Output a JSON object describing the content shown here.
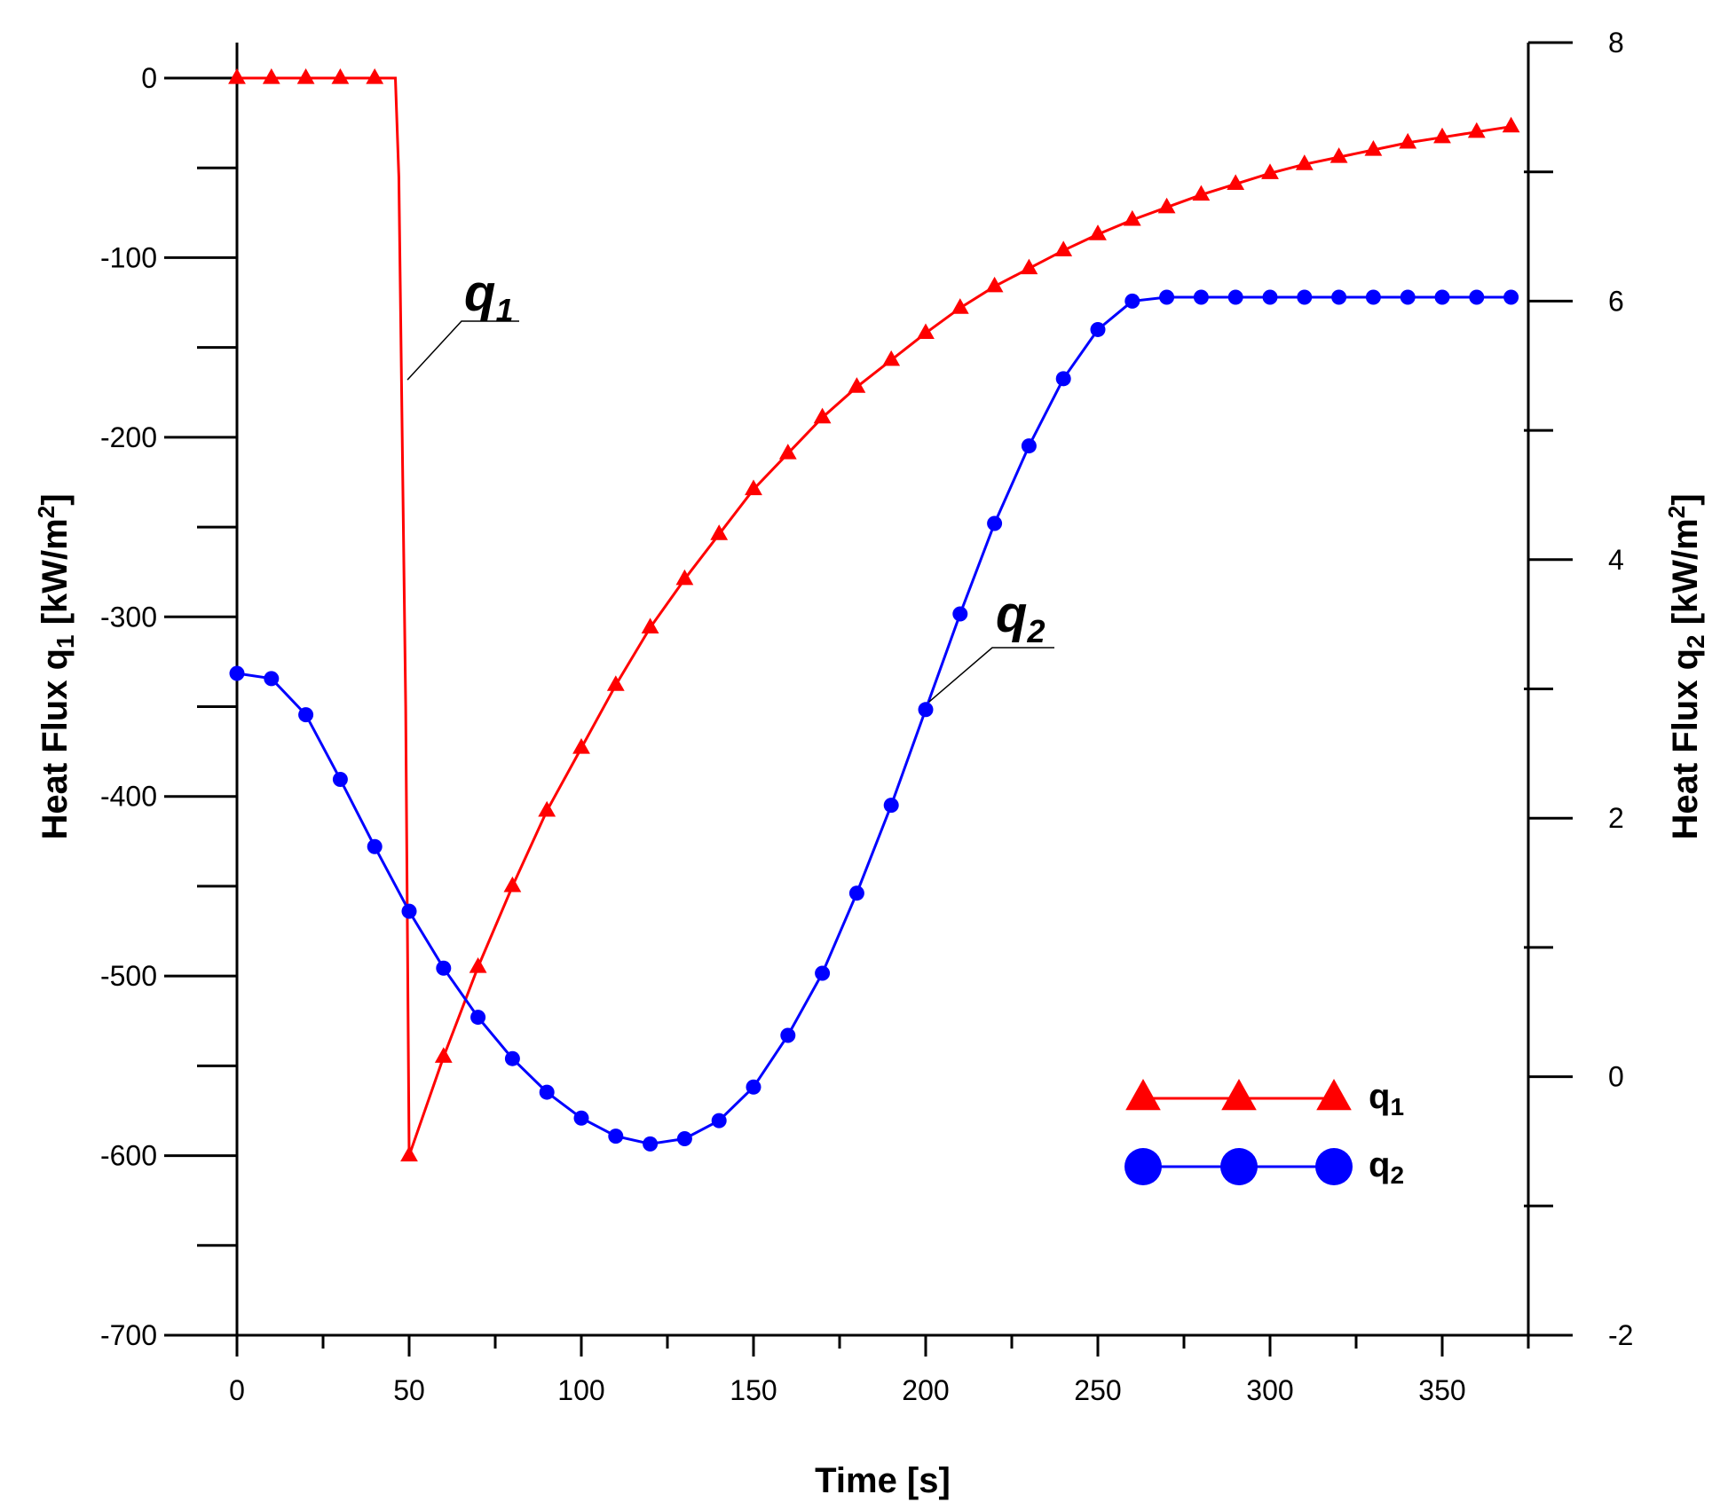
{
  "chart_data": {
    "type": "line",
    "title": "",
    "xlabel": "Time [s]",
    "ylabel_left": {
      "text": "Heat Flux q",
      "sub": "1",
      "unit": " [kW/m",
      "sup": "2",
      "close": "]"
    },
    "ylabel_right": {
      "text": "Heat Flux q",
      "sub": "2",
      "unit": " [kW/m",
      "sup": "2",
      "close": "]"
    },
    "xlim": [
      0,
      375
    ],
    "ylim_left": [
      -700,
      20
    ],
    "ylim_right": [
      -2,
      8
    ],
    "x_ticks": [
      0,
      50,
      100,
      150,
      200,
      250,
      300,
      350
    ],
    "x_tick_labels": [
      "0",
      "50",
      "100",
      "150",
      "200",
      "250",
      "300",
      "350"
    ],
    "x_minor_ticks": [
      25,
      75,
      125,
      175,
      225,
      275,
      325,
      375
    ],
    "y_left_ticks": [
      0,
      -100,
      -200,
      -300,
      -400,
      -500,
      -600,
      -700
    ],
    "y_left_tick_labels": [
      "0",
      "-100",
      "-200",
      "-300",
      "-400",
      "-500",
      "-600",
      "-700"
    ],
    "y_left_minor_ticks": [
      -50,
      -150,
      -250,
      -350,
      -450,
      -550,
      -650
    ],
    "y_right_ticks": [
      8,
      6,
      4,
      2,
      0,
      -2
    ],
    "y_right_tick_labels": [
      "8",
      "6",
      "4",
      "2",
      "0",
      "-2"
    ],
    "y_right_minor_ticks": [
      7,
      5,
      3,
      1,
      -1
    ],
    "series": [
      {
        "name": "q1",
        "axis": "left",
        "color": "#ff0000",
        "marker": "triangle",
        "x": [
          0,
          10,
          20,
          30,
          40,
          46,
          47,
          48,
          49,
          50,
          60,
          70,
          80,
          90,
          100,
          110,
          120,
          130,
          140,
          150,
          160,
          170,
          180,
          190,
          200,
          210,
          220,
          230,
          240,
          250,
          260,
          270,
          280,
          290,
          300,
          310,
          320,
          330,
          340,
          350,
          360,
          370
        ],
        "y": [
          0,
          0,
          0,
          0,
          0,
          0,
          -55,
          -200,
          -350,
          -600,
          -545,
          -495,
          -450,
          -408,
          -373,
          -338,
          -306,
          -279,
          -254,
          -229,
          -209,
          -189,
          -172,
          -157,
          -142,
          -128,
          -116,
          -106,
          -96,
          -87,
          -79,
          -72,
          -65,
          -59,
          -53,
          -48,
          -44,
          -40,
          -36,
          -33,
          -30,
          -27
        ],
        "marker_x": [
          0,
          10,
          20,
          30,
          40,
          50,
          60,
          70,
          80,
          90,
          100,
          110,
          120,
          130,
          140,
          150,
          160,
          170,
          180,
          190,
          200,
          210,
          220,
          230,
          240,
          250,
          260,
          270,
          280,
          290,
          300,
          310,
          320,
          330,
          340,
          350,
          360,
          370
        ]
      },
      {
        "name": "q2",
        "axis": "right",
        "color": "#0000ff",
        "marker": "circle",
        "x": [
          0,
          10,
          20,
          30,
          40,
          50,
          60,
          70,
          80,
          90,
          100,
          110,
          120,
          130,
          140,
          150,
          160,
          170,
          180,
          190,
          200,
          210,
          220,
          230,
          240,
          250,
          260,
          270,
          280,
          290,
          300,
          310,
          320,
          330,
          340,
          350,
          360,
          370
        ],
        "y": [
          3.12,
          3.08,
          2.8,
          2.3,
          1.78,
          1.28,
          0.84,
          0.46,
          0.14,
          -0.12,
          -0.32,
          -0.46,
          -0.52,
          -0.48,
          -0.34,
          -0.08,
          0.32,
          0.8,
          1.42,
          2.1,
          2.84,
          3.58,
          4.28,
          4.88,
          5.4,
          5.78,
          6.0,
          6.03,
          6.03,
          6.03,
          6.03,
          6.03,
          6.03,
          6.03,
          6.03,
          6.03,
          6.03,
          6.03
        ]
      }
    ],
    "annotations": [
      {
        "text": "q",
        "sub": "1",
        "points_to": {
          "x": 49.5,
          "y": -168,
          "axis": "left"
        }
      },
      {
        "text": "q",
        "sub": "2",
        "points_to": {
          "x": 201,
          "y": 2.9,
          "axis": "right"
        }
      }
    ],
    "legend": {
      "position": "bottom-right",
      "entries": [
        {
          "name": "q",
          "sub": "1",
          "series": "q1"
        },
        {
          "name": "q",
          "sub": "2",
          "series": "q2"
        }
      ]
    }
  }
}
